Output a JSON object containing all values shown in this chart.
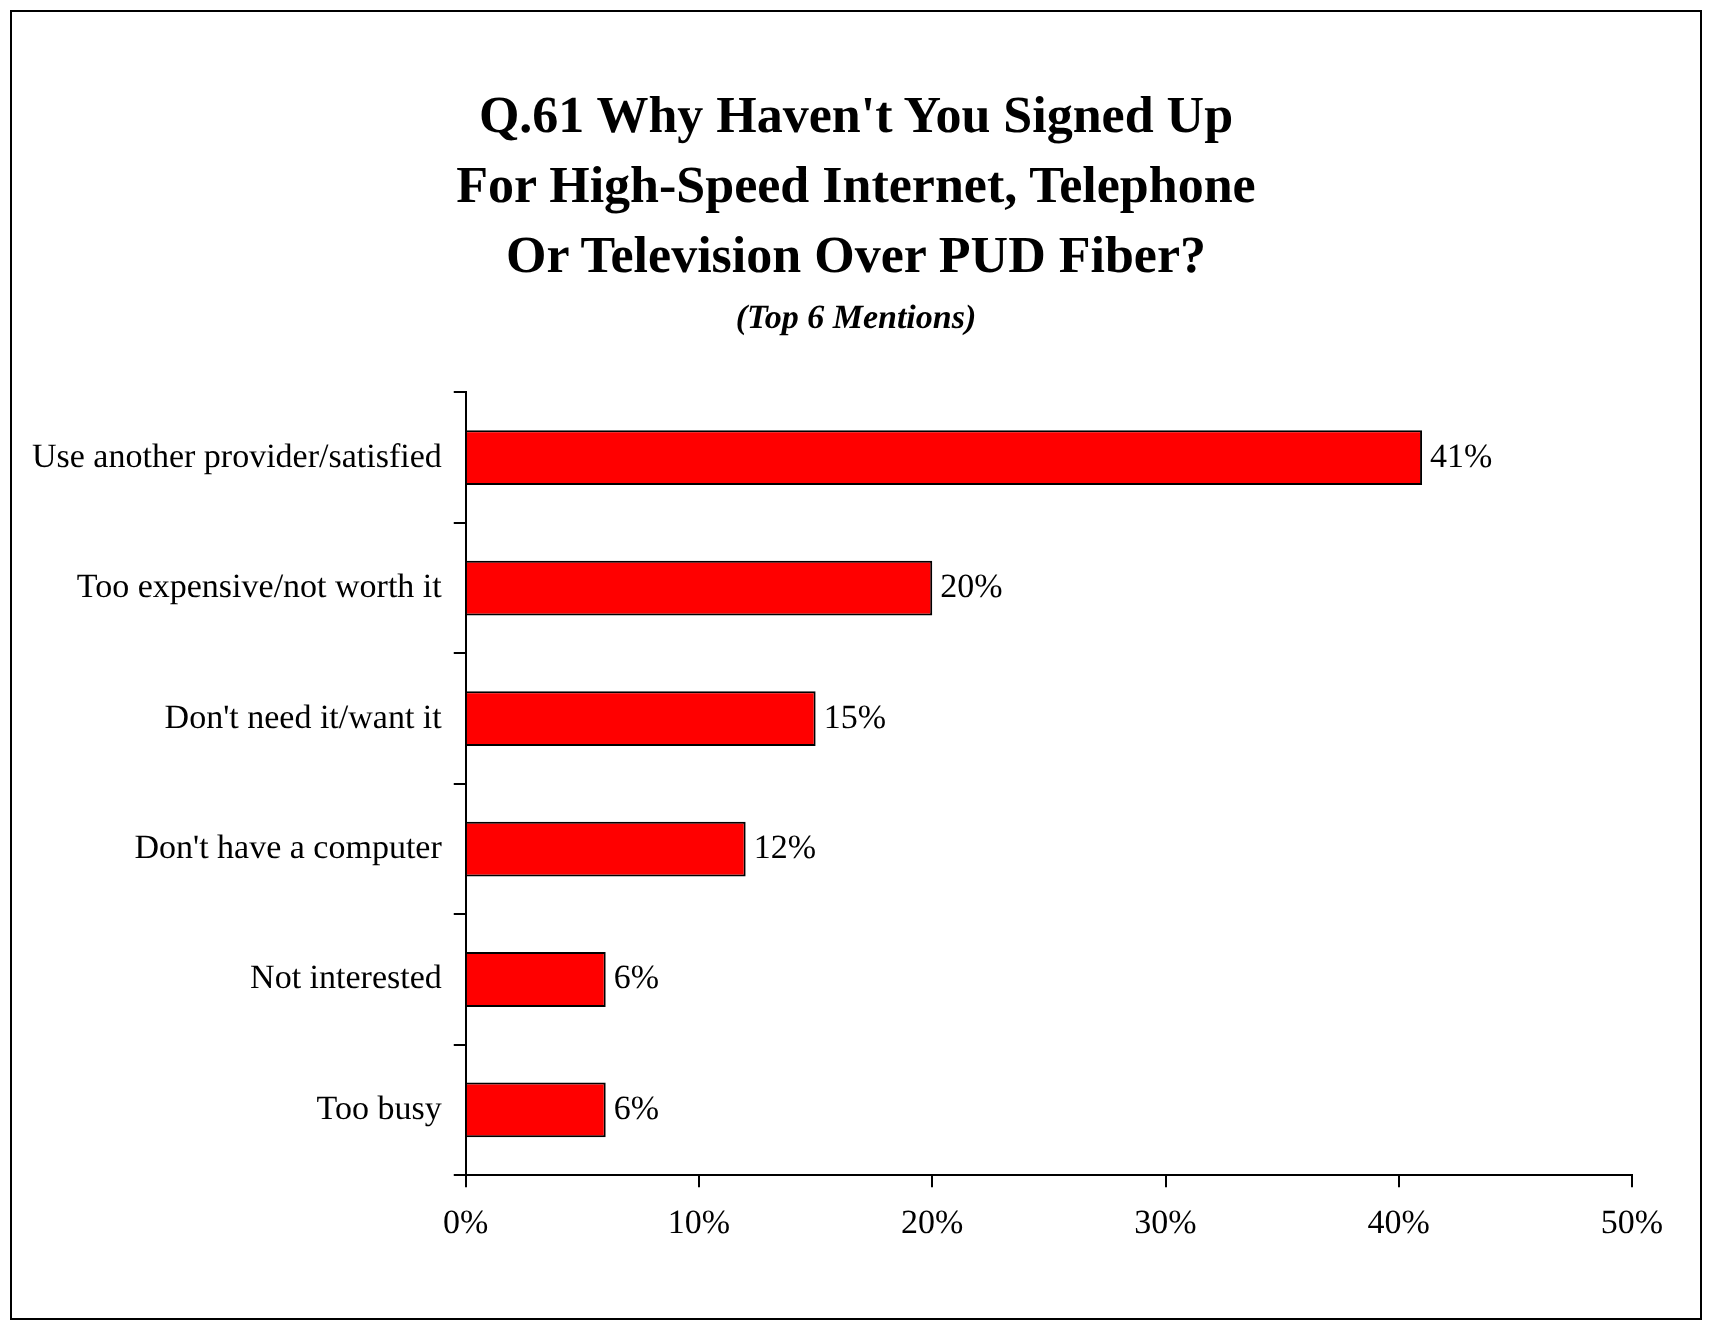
{
  "chart_data": {
    "type": "bar",
    "orientation": "horizontal",
    "title": "Q.61 Why Haven't You Signed Up For High-Speed Internet, Telephone Or Television Over PUD Fiber?",
    "subtitle": "(Top 6 Mentions)",
    "categories": [
      "Use another provider/satisfied",
      "Too expensive/not worth it",
      "Don't need it/want it",
      "Don't have a computer",
      "Not interested",
      "Too busy"
    ],
    "values": [
      41,
      20,
      15,
      12,
      6,
      6
    ],
    "value_labels": [
      "41%",
      "20%",
      "15%",
      "12%",
      "6%",
      "6%"
    ],
    "color": "#ff0000",
    "xlim": [
      0,
      50
    ],
    "xticks": [
      {
        "value": 0,
        "label": "0%"
      },
      {
        "value": 10,
        "label": "10%"
      },
      {
        "value": 20,
        "label": "20%"
      },
      {
        "value": 30,
        "label": "30%"
      },
      {
        "value": 40,
        "label": "40%"
      },
      {
        "value": 50,
        "label": "50%"
      }
    ],
    "legend": false
  }
}
